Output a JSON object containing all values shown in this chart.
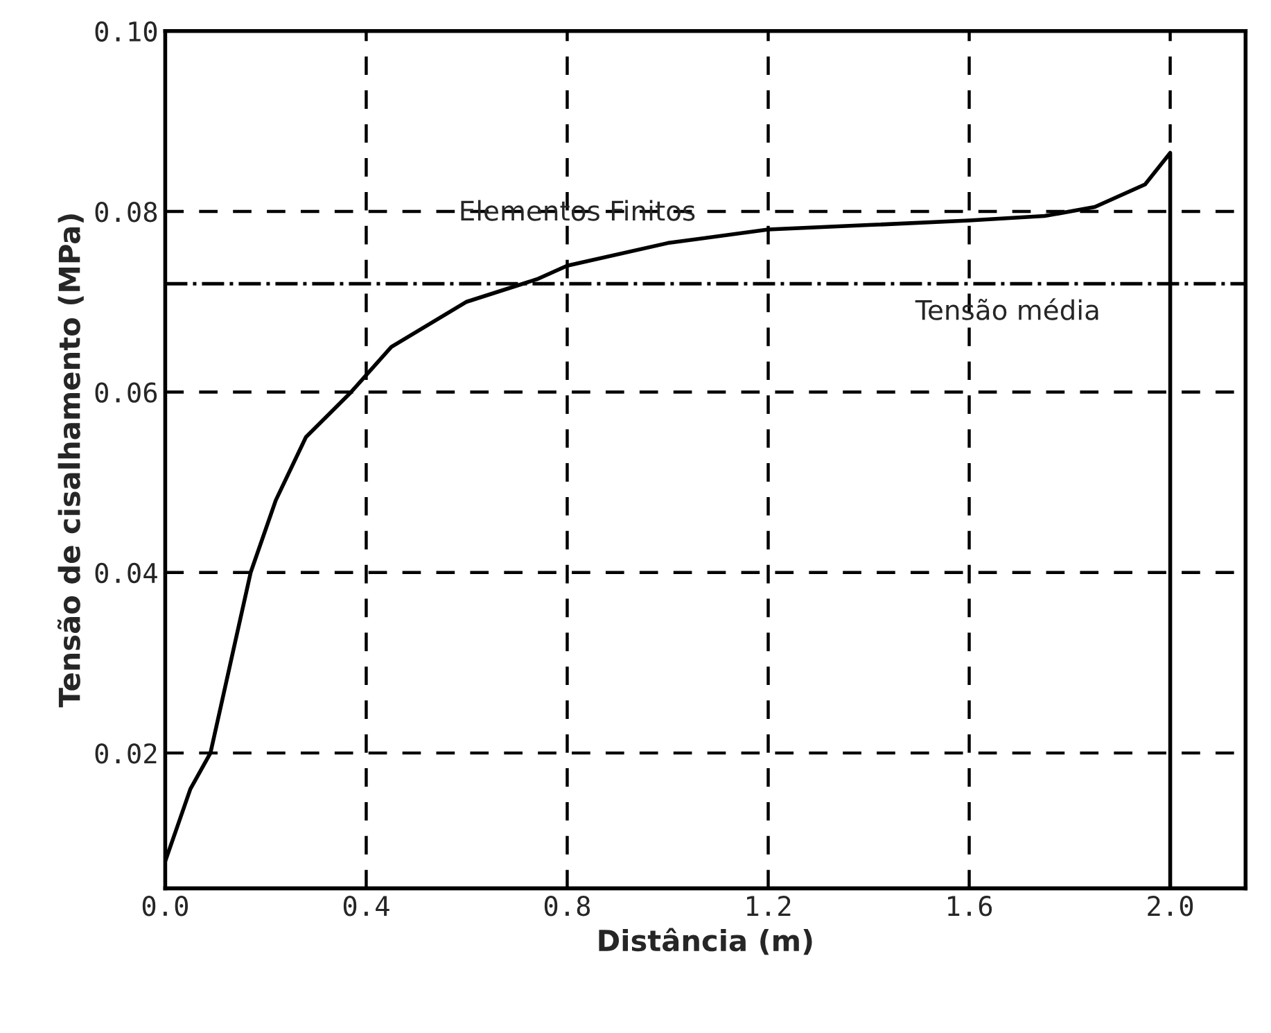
{
  "chart_data": {
    "type": "line",
    "xlabel": "Distância (m)",
    "ylabel": "Tensão de cisalhamento (MPa)",
    "x": [
      0,
      0.05,
      0.09,
      0.13,
      0.17,
      0.22,
      0.28,
      0.37,
      0.45,
      0.6,
      0.74,
      0.8,
      1.0,
      1.2,
      1.4,
      1.6,
      1.75,
      1.85,
      1.95,
      2.0,
      2.0
    ],
    "series": [
      {
        "name": "Elementos Finitos",
        "color": "#000000",
        "values": [
          0.008,
          0.016,
          0.02,
          0.03,
          0.04,
          0.048,
          0.055,
          0.06,
          0.065,
          0.07,
          0.0725,
          0.074,
          0.0765,
          0.078,
          0.0785,
          0.079,
          0.0795,
          0.0805,
          0.083,
          0.0865,
          0.005
        ]
      }
    ],
    "ref_lines": [
      {
        "axis": "y",
        "value": 0.072,
        "label": "Tensão média",
        "line_style": "dashdot",
        "color": "#000000"
      }
    ],
    "xlim": [
      0,
      2.15
    ],
    "ylim": [
      0.005,
      0.1
    ],
    "xticks": [
      {
        "value": 0,
        "label": "0.0"
      },
      {
        "value": 0.4,
        "label": "0.4"
      },
      {
        "value": 0.8,
        "label": "0.8"
      },
      {
        "value": 1.2,
        "label": "1.2"
      },
      {
        "value": 1.6,
        "label": "1.6"
      },
      {
        "value": 2.0,
        "label": "2.0"
      }
    ],
    "yticks": [
      {
        "value": 0.02,
        "label": "0.02"
      },
      {
        "value": 0.04,
        "label": "0.04"
      },
      {
        "value": 0.06,
        "label": "0.06"
      },
      {
        "value": 0.08,
        "label": "0.08"
      },
      {
        "value": 0.1,
        "label": "0.10"
      }
    ],
    "grid": true,
    "line_style": "solid",
    "marker": "none"
  }
}
